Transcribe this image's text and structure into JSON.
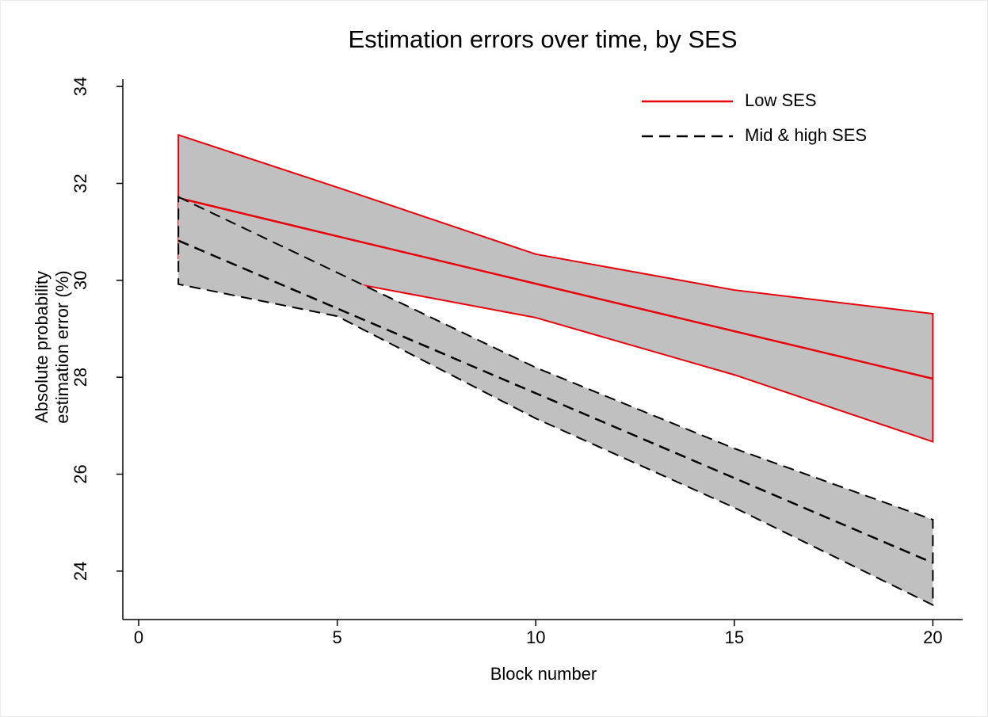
{
  "chart_data": {
    "type": "line-band",
    "title": "Estimation errors over time, by SES",
    "xlabel": "Block number",
    "ylabel": [
      "Absolute probability",
      "estimation error (%)"
    ],
    "x": [
      1,
      5,
      10,
      15,
      20
    ],
    "xlim": [
      -0.4,
      20.75
    ],
    "xticks": [
      0,
      5,
      10,
      15,
      20
    ],
    "ylim": [
      23,
      34.15
    ],
    "yticks": [
      24,
      26,
      28,
      30,
      32,
      34
    ],
    "band_color": "#c0c0c0",
    "legend": "top-right",
    "series": [
      {
        "name": "Low SES",
        "color": "#e8000b",
        "dashed": false,
        "values": [
          31.7,
          30.91,
          29.93,
          28.95,
          27.97
        ],
        "lower": [
          30.45,
          30.0,
          29.23,
          28.05,
          26.67
        ],
        "upper": [
          33.0,
          31.92,
          30.54,
          29.8,
          29.31
        ]
      },
      {
        "name": "Mid & high SES",
        "color": "#000000",
        "dashed": true,
        "values": [
          30.82,
          29.42,
          27.67,
          25.92,
          24.17
        ],
        "lower": [
          29.92,
          29.26,
          27.15,
          25.31,
          23.3
        ],
        "upper": [
          31.72,
          30.16,
          28.2,
          26.53,
          25.06
        ]
      }
    ]
  }
}
